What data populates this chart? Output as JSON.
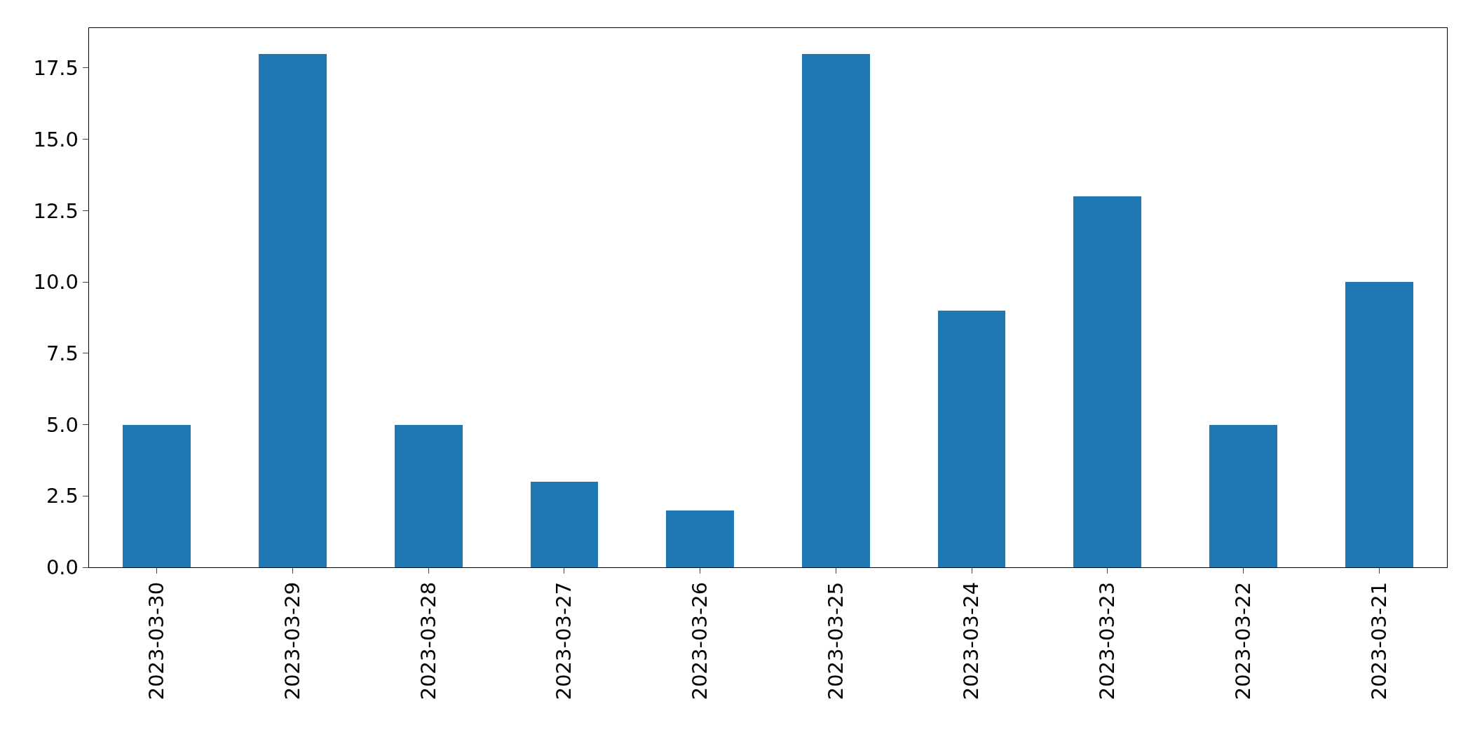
{
  "chart_data": {
    "type": "bar",
    "categories": [
      "2023-03-30",
      "2023-03-29",
      "2023-03-28",
      "2023-03-27",
      "2023-03-26",
      "2023-03-25",
      "2023-03-24",
      "2023-03-23",
      "2023-03-22",
      "2023-03-21"
    ],
    "values": [
      5,
      18,
      5,
      3,
      2,
      18,
      9,
      13,
      5,
      10
    ],
    "color": "#1f77b4",
    "ylim": [
      0,
      18.9
    ],
    "yticks": [
      {
        "value": 0,
        "label": "0.0"
      },
      {
        "value": 2.5,
        "label": "2.5"
      },
      {
        "value": 5,
        "label": "5.0"
      },
      {
        "value": 7.5,
        "label": "7.5"
      },
      {
        "value": 10,
        "label": "10.0"
      },
      {
        "value": 12.5,
        "label": "12.5"
      },
      {
        "value": 15,
        "label": "15.0"
      },
      {
        "value": 17.5,
        "label": "17.5"
      }
    ],
    "grid": false
  }
}
